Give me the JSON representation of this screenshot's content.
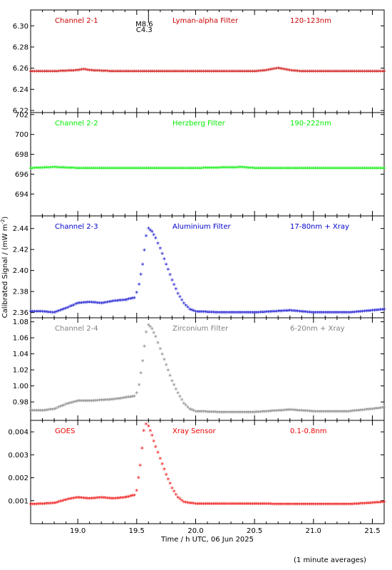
{
  "figure": {
    "xlabel": "Time / h UTC, 06 Jun 2025",
    "ylabel": "Calibrated Signal / (mW m",
    "ylabel_sup": "-2",
    "ylabel_close": ")",
    "footnote": "(1 minute averages)",
    "flare_marker": {
      "line1": "M8.6",
      "line2": "C4.3",
      "x": 19.6
    }
  },
  "chart_data": [
    {
      "type": "scatter",
      "channel": "Channel 2-1",
      "filter": "Lyman-alpha Filter",
      "band": "120-123nm",
      "color": "#cc0000",
      "xlim": [
        18.6,
        21.6
      ],
      "ylim": [
        6.218,
        6.315
      ],
      "yticks": [
        6.22,
        6.24,
        6.26,
        6.28,
        6.3
      ],
      "ytick_labels": [
        "6.22",
        "6.24",
        "6.26",
        "6.28",
        "6.30"
      ],
      "points": [
        [
          18.6,
          6.256
        ],
        [
          18.8,
          6.256
        ],
        [
          19.0,
          6.257
        ],
        [
          19.05,
          6.258
        ],
        [
          19.1,
          6.257
        ],
        [
          19.3,
          6.256
        ],
        [
          19.5,
          6.256
        ],
        [
          19.8,
          6.256
        ],
        [
          20.0,
          6.256
        ],
        [
          20.3,
          6.256
        ],
        [
          20.5,
          6.256
        ],
        [
          20.6,
          6.257
        ],
        [
          20.7,
          6.259
        ],
        [
          20.8,
          6.257
        ],
        [
          20.9,
          6.256
        ],
        [
          21.2,
          6.256
        ],
        [
          21.6,
          6.256
        ]
      ]
    },
    {
      "type": "scatter",
      "channel": "Channel 2-2",
      "filter": "Herzberg Filter",
      "band": "190-222nm",
      "color": "#00ee00",
      "xlim": [
        18.6,
        21.6
      ],
      "ylim": [
        691.8,
        702.2
      ],
      "yticks": [
        694,
        696,
        698,
        700,
        702
      ],
      "ytick_labels": [
        "694",
        "696",
        "698",
        "700",
        "702"
      ],
      "points": [
        [
          18.6,
          696.5
        ],
        [
          18.8,
          696.6
        ],
        [
          19.0,
          696.5
        ],
        [
          19.5,
          696.5
        ],
        [
          20.0,
          696.5
        ],
        [
          20.4,
          696.6
        ],
        [
          20.5,
          696.5
        ],
        [
          21.0,
          696.5
        ],
        [
          21.6,
          696.5
        ]
      ]
    },
    {
      "type": "scatter",
      "channel": "Channel 2-3",
      "filter": "Aluminium Filter",
      "band": "17-80nm + Xray",
      "color": "#0000cc",
      "xlim": [
        18.6,
        21.6
      ],
      "ylim": [
        2.355,
        2.452
      ],
      "yticks": [
        2.36,
        2.38,
        2.4,
        2.42,
        2.44
      ],
      "ytick_labels": [
        "2.36",
        "2.38",
        "2.40",
        "2.42",
        "2.44"
      ],
      "points": [
        [
          18.6,
          2.36
        ],
        [
          18.7,
          2.36
        ],
        [
          18.8,
          2.359
        ],
        [
          18.9,
          2.363
        ],
        [
          19.0,
          2.368
        ],
        [
          19.1,
          2.369
        ],
        [
          19.2,
          2.368
        ],
        [
          19.3,
          2.37
        ],
        [
          19.4,
          2.371
        ],
        [
          19.48,
          2.373
        ],
        [
          19.5,
          2.378
        ],
        [
          19.52,
          2.386
        ],
        [
          19.55,
          2.405
        ],
        [
          19.58,
          2.432
        ],
        [
          19.6,
          2.439
        ],
        [
          19.63,
          2.436
        ],
        [
          19.66,
          2.43
        ],
        [
          19.7,
          2.42
        ],
        [
          19.75,
          2.405
        ],
        [
          19.8,
          2.39
        ],
        [
          19.85,
          2.377
        ],
        [
          19.9,
          2.368
        ],
        [
          19.95,
          2.362
        ],
        [
          20.0,
          2.36
        ],
        [
          20.2,
          2.359
        ],
        [
          20.5,
          2.359
        ],
        [
          20.8,
          2.361
        ],
        [
          21.0,
          2.359
        ],
        [
          21.3,
          2.359
        ],
        [
          21.5,
          2.361
        ],
        [
          21.6,
          2.362
        ]
      ]
    },
    {
      "type": "scatter",
      "channel": "Channel 2-4",
      "filter": "Zirconium Filter",
      "band": "6-20nm + Xray",
      "color": "#808080",
      "xlim": [
        18.6,
        21.6
      ],
      "ylim": [
        0.957,
        1.085
      ],
      "yticks": [
        0.98,
        1.0,
        1.02,
        1.04,
        1.06,
        1.08
      ],
      "ytick_labels": [
        "0.98",
        "1.00",
        "1.02",
        "1.04",
        "1.06",
        "1.08"
      ],
      "points": [
        [
          18.6,
          0.968
        ],
        [
          18.7,
          0.968
        ],
        [
          18.8,
          0.97
        ],
        [
          18.9,
          0.976
        ],
        [
          19.0,
          0.98
        ],
        [
          19.1,
          0.98
        ],
        [
          19.2,
          0.981
        ],
        [
          19.3,
          0.982
        ],
        [
          19.4,
          0.984
        ],
        [
          19.48,
          0.986
        ],
        [
          19.5,
          0.99
        ],
        [
          19.52,
          1.0
        ],
        [
          19.55,
          1.03
        ],
        [
          19.58,
          1.066
        ],
        [
          19.6,
          1.075
        ],
        [
          19.63,
          1.07
        ],
        [
          19.66,
          1.06
        ],
        [
          19.7,
          1.045
        ],
        [
          19.75,
          1.025
        ],
        [
          19.8,
          1.005
        ],
        [
          19.85,
          0.99
        ],
        [
          19.9,
          0.977
        ],
        [
          19.95,
          0.97
        ],
        [
          20.0,
          0.967
        ],
        [
          20.2,
          0.966
        ],
        [
          20.5,
          0.966
        ],
        [
          20.8,
          0.969
        ],
        [
          21.0,
          0.967
        ],
        [
          21.3,
          0.967
        ],
        [
          21.5,
          0.97
        ],
        [
          21.6,
          0.972
        ]
      ]
    },
    {
      "type": "scatter",
      "channel": "GOES",
      "filter": "Xray Sensor",
      "band": "0.1-0.8nm",
      "color": "#ee0000",
      "xlim": [
        18.6,
        21.6
      ],
      "ylim": [
        0.0,
        0.0045
      ],
      "yticks": [
        0.001,
        0.002,
        0.003,
        0.004
      ],
      "ytick_labels": [
        "0.001",
        "0.002",
        "0.003",
        "0.004"
      ],
      "xticks": [
        19.0,
        19.5,
        20.0,
        20.5,
        21.0,
        21.5
      ],
      "xtick_labels": [
        "19.0",
        "19.5",
        "20.0",
        "20.5",
        "21.0",
        "21.5"
      ],
      "points": [
        [
          18.6,
          0.0008
        ],
        [
          18.8,
          0.00085
        ],
        [
          18.9,
          0.001
        ],
        [
          19.0,
          0.0011
        ],
        [
          19.1,
          0.00105
        ],
        [
          19.2,
          0.0011
        ],
        [
          19.3,
          0.00105
        ],
        [
          19.4,
          0.0011
        ],
        [
          19.48,
          0.0012
        ],
        [
          19.5,
          0.0014
        ],
        [
          19.53,
          0.0025
        ],
        [
          19.56,
          0.004
        ],
        [
          19.58,
          0.0043
        ],
        [
          19.6,
          0.0042
        ],
        [
          19.63,
          0.0038
        ],
        [
          19.66,
          0.0033
        ],
        [
          19.7,
          0.0028
        ],
        [
          19.75,
          0.0021
        ],
        [
          19.8,
          0.0015
        ],
        [
          19.85,
          0.0011
        ],
        [
          19.9,
          0.0009
        ],
        [
          20.0,
          0.00082
        ],
        [
          20.5,
          0.00082
        ],
        [
          21.0,
          0.0008
        ],
        [
          21.3,
          0.0008
        ],
        [
          21.6,
          0.0009
        ]
      ]
    }
  ]
}
